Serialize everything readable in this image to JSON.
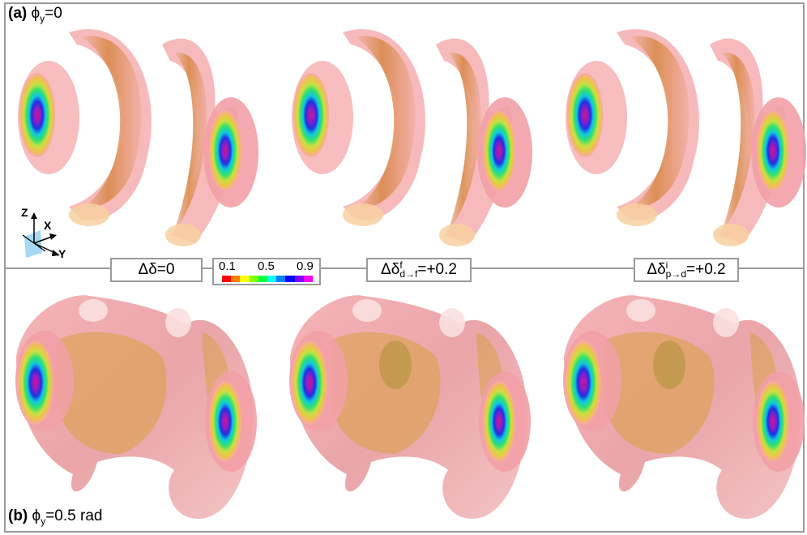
{
  "panel_a": {
    "letter": "(a)",
    "phi": "ϕ",
    "phi_sub": "y",
    "value": "=0"
  },
  "panel_b": {
    "letter": "(b)",
    "phi": "ϕ",
    "phi_sub": "y",
    "value": "=0.5 rad"
  },
  "labels": [
    {
      "main": "Δδ",
      "sup": "",
      "sub": "",
      "rest": "=0"
    },
    {
      "main": "Δδ",
      "sup": "f",
      "sub": "d→f",
      "rest": "=+0.2"
    },
    {
      "main": "Δδ",
      "sup": "i",
      "sub": "p→d",
      "rest": "=+0.2"
    }
  ],
  "colorbar": {
    "ticks": [
      "0.1",
      "0.5",
      "0.9"
    ],
    "colors": [
      "#ff0000",
      "#ff8000",
      "#ffff00",
      "#80ff00",
      "#00ff40",
      "#00ffff",
      "#0080ff",
      "#0000ff",
      "#8000ff",
      "#ff00ff"
    ]
  },
  "axes": {
    "z": "Z",
    "x": "X",
    "y": "Y"
  },
  "colors": {
    "shell": "#f6a9ad",
    "inner": "#e8a044",
    "core": "#d11a9a",
    "frame": "#9a9a9a"
  }
}
